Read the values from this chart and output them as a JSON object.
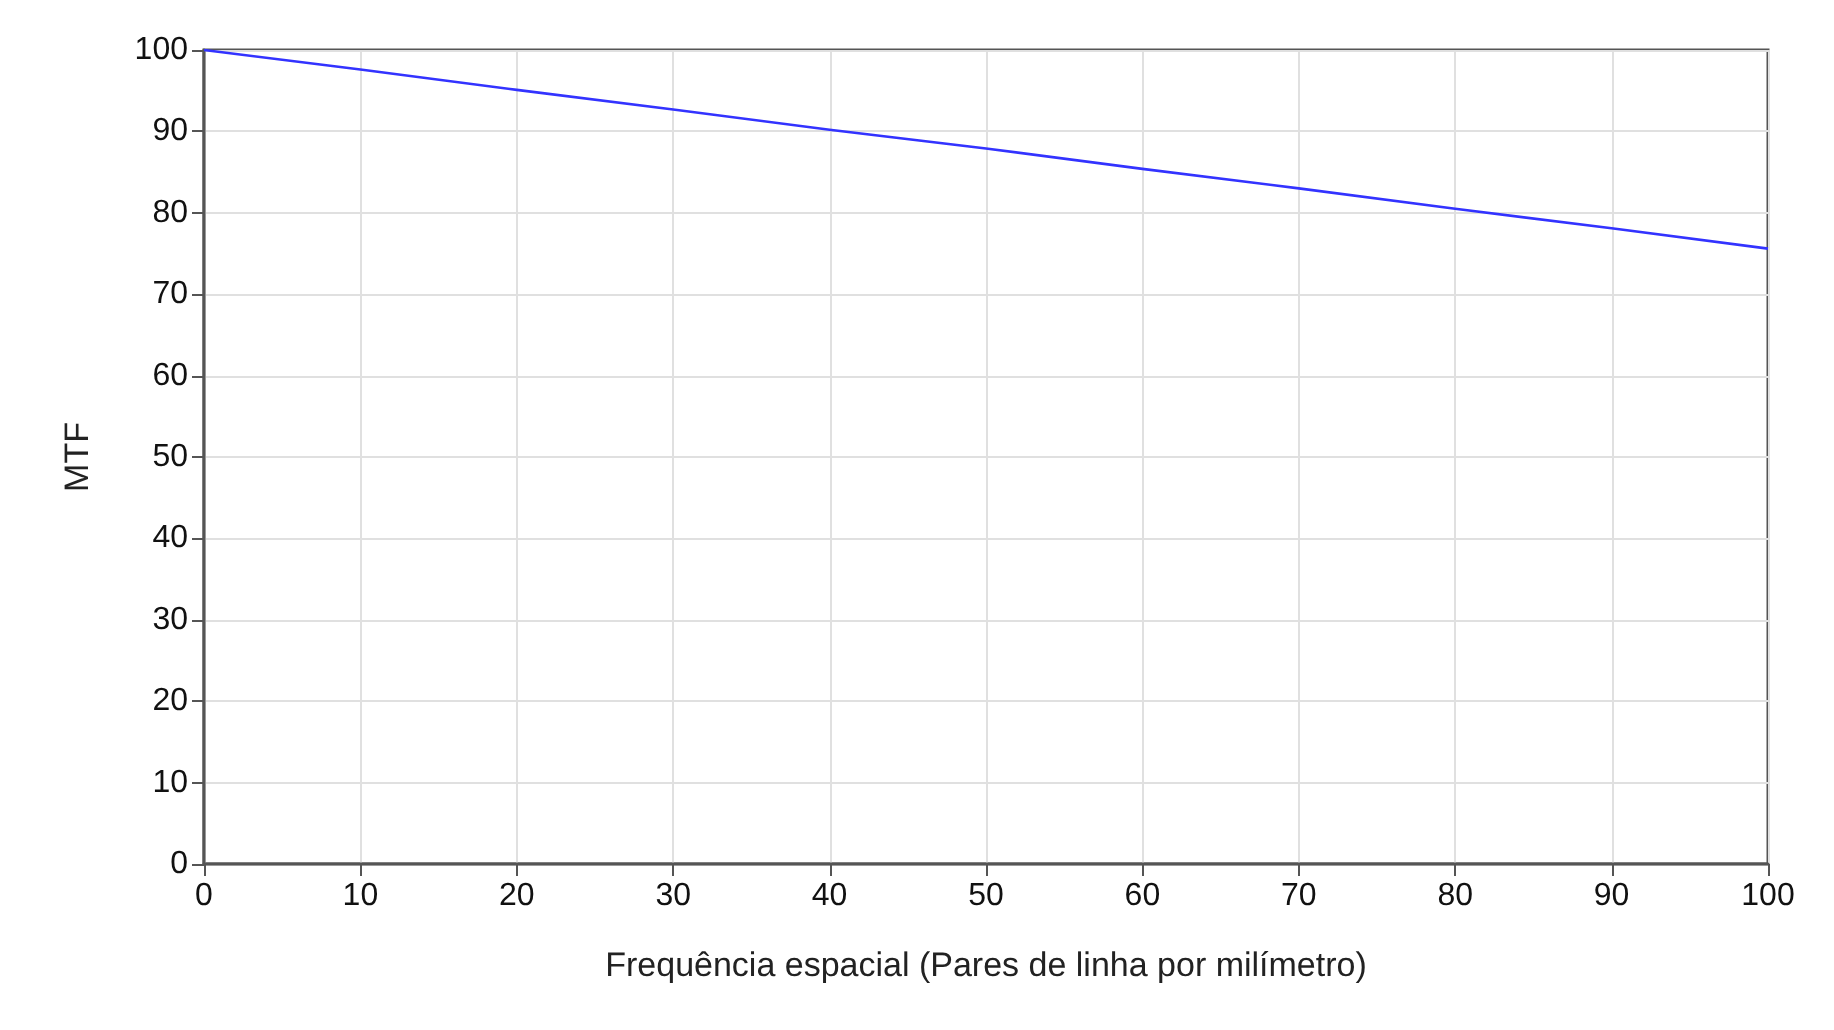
{
  "chart_data": {
    "type": "line",
    "xlabel": "Frequência espacial (Pares de linha por milímetro)",
    "ylabel": "MTF",
    "x": [
      0,
      10,
      20,
      30,
      40,
      50,
      60,
      70,
      80,
      90,
      100
    ],
    "series": [
      {
        "color": "#3333ff",
        "values": [
          100,
          97.6,
          95.1,
          92.7,
          90.2,
          87.9,
          85.4,
          83.0,
          80.5,
          78.1,
          75.6
        ]
      }
    ],
    "xlim": [
      0,
      100
    ],
    "xticks": [
      0,
      10,
      20,
      30,
      40,
      50,
      60,
      70,
      80,
      90,
      100
    ],
    "ylim": [
      0,
      100
    ],
    "yticks": [
      0,
      10,
      20,
      30,
      40,
      50,
      60,
      70,
      80,
      90,
      100
    ],
    "grid": true,
    "marker": "none",
    "line_style": "solid"
  }
}
